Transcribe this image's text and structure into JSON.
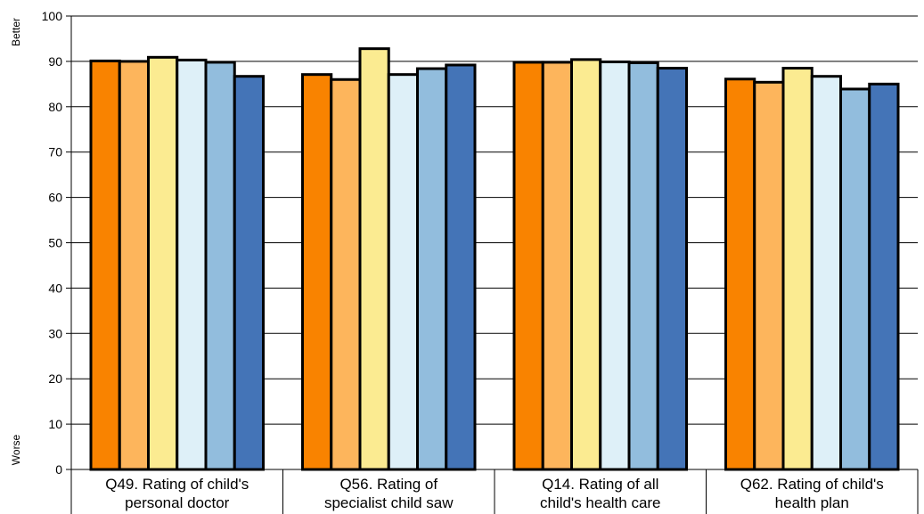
{
  "chart_data": {
    "type": "bar",
    "title": "",
    "xlabel": "",
    "ylabel": "",
    "ylabel_top": "Better",
    "ylabel_bottom": "Worse",
    "ylim": [
      0,
      100
    ],
    "yticks": [
      "0",
      "10",
      "20",
      "30",
      "40",
      "50",
      "60",
      "70",
      "80",
      "90",
      "100"
    ],
    "grid": true,
    "legend": "none",
    "categories": [
      [
        "Q49. Rating of child's",
        "personal doctor"
      ],
      [
        "Q56. Rating of",
        "specialist child saw"
      ],
      [
        "Q14. Rating of all",
        "child's health care"
      ],
      [
        "Q62. Rating of child's",
        "health plan"
      ]
    ],
    "series": [
      {
        "color": "#F98300",
        "values": [
          90.1,
          87.1,
          89.8,
          86.1
        ]
      },
      {
        "color": "#FDB55C",
        "values": [
          90.0,
          86.0,
          89.8,
          85.4
        ]
      },
      {
        "color": "#FBEB91",
        "values": [
          90.9,
          92.8,
          90.4,
          88.5
        ]
      },
      {
        "color": "#DEF0F8",
        "values": [
          90.3,
          87.1,
          89.9,
          86.7
        ]
      },
      {
        "color": "#92BDDD",
        "values": [
          89.8,
          88.4,
          89.7,
          83.9
        ]
      },
      {
        "color": "#4474B7",
        "values": [
          86.7,
          89.2,
          88.5,
          85.0
        ]
      }
    ]
  }
}
